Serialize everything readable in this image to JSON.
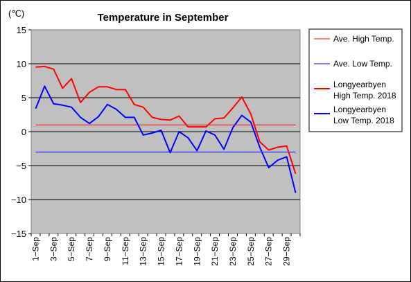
{
  "chart_data": {
    "type": "line",
    "title": "Temperature in September",
    "unit": "(℃)",
    "ylim": [
      -15,
      15
    ],
    "y_ticks": [
      "15",
      "10",
      "5",
      "0",
      "−5",
      "−10",
      "−15"
    ],
    "y_tick_values": [
      15,
      10,
      5,
      0,
      -5,
      -10,
      -15
    ],
    "x_tick_labels": [
      "1−Sep",
      "3−Sep",
      "5−Sep",
      "7−Sep",
      "9−Sep",
      "11−Sep",
      "13−Sep",
      "15−Sep",
      "17−Sep",
      "19−Sep",
      "21−Sep",
      "23−Sep",
      "25−Sep",
      "27−Sep",
      "29−Sep"
    ],
    "x_tick_days": [
      1,
      3,
      5,
      7,
      9,
      11,
      13,
      15,
      17,
      19,
      21,
      23,
      25,
      27,
      29
    ],
    "days": [
      1,
      2,
      3,
      4,
      5,
      6,
      7,
      8,
      9,
      10,
      11,
      12,
      13,
      14,
      15,
      16,
      17,
      18,
      19,
      20,
      21,
      22,
      23,
      24,
      25,
      26,
      27,
      28,
      29,
      30
    ],
    "grid": true,
    "legend_position": "right",
    "plot_background": "#c0c0c0",
    "series": [
      {
        "name": "Ave. High Temp.",
        "color": "#ff0000",
        "thick": false,
        "values": [
          1,
          1,
          1,
          1,
          1,
          1,
          1,
          1,
          1,
          1,
          1,
          1,
          1,
          1,
          1,
          1,
          1,
          1,
          1,
          1,
          1,
          1,
          1,
          1,
          1,
          1,
          1,
          1,
          1,
          1
        ]
      },
      {
        "name": "Ave. Low Temp.",
        "color": "#0000ff",
        "thick": false,
        "values": [
          -3,
          -3,
          -3,
          -3,
          -3,
          -3,
          -3,
          -3,
          -3,
          -3,
          -3,
          -3,
          -3,
          -3,
          -3,
          -3,
          -3,
          -3,
          -3,
          -3,
          -3,
          -3,
          -3,
          -3,
          -3,
          -3,
          -3,
          -3,
          -3,
          -3
        ]
      },
      {
        "name": "Longyearbyen High Temp. 2018",
        "label_lines": [
          "Longyearbyen",
          "High Temp. 2018"
        ],
        "color": "#ff0000",
        "thick": true,
        "values": [
          9.5,
          9.6,
          9.2,
          6.4,
          7.8,
          4.3,
          5.8,
          6.6,
          6.6,
          6.2,
          6.2,
          4.0,
          3.6,
          2.1,
          1.8,
          1.7,
          2.3,
          0.7,
          0.7,
          0.7,
          1.9,
          2.0,
          3.5,
          5.1,
          2.6,
          -1.5,
          -2.7,
          -2.3,
          -2.1,
          -6.2
        ]
      },
      {
        "name": "Longyearbyen Low Temp. 2018",
        "label_lines": [
          "Longyearbyen",
          "Low Temp. 2018"
        ],
        "color": "#0000ff",
        "thick": true,
        "values": [
          3.4,
          6.7,
          4.1,
          3.9,
          3.6,
          2.1,
          1.2,
          2.2,
          4.0,
          3.3,
          2.1,
          2.1,
          -0.5,
          -0.2,
          0.2,
          -3.1,
          0.0,
          -0.9,
          -2.8,
          0.1,
          -0.5,
          -2.6,
          0.6,
          2.4,
          1.4,
          -2.3,
          -5.3,
          -4.2,
          -3.7,
          -9.0
        ]
      }
    ]
  }
}
